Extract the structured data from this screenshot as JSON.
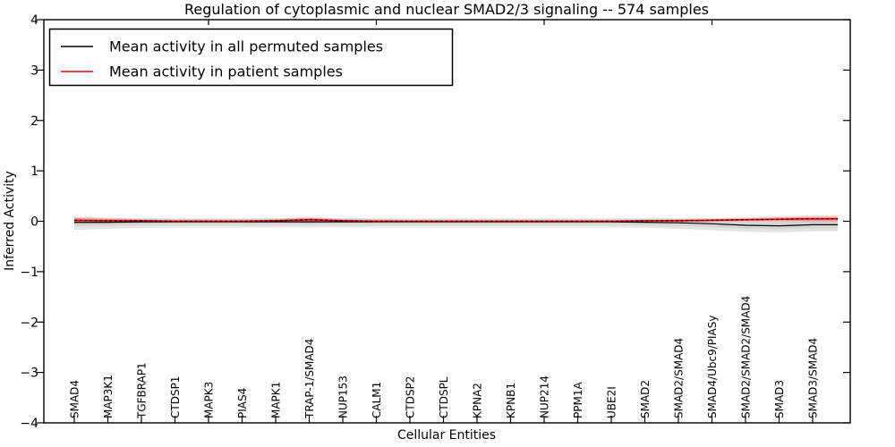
{
  "chart_data": {
    "type": "line",
    "title": "Regulation of cytoplasmic and nuclear SMAD2/3 signaling -- 574 samples",
    "xlabel": "Cellular Entities",
    "ylabel": "Inferred Activity",
    "ylim": [
      -4,
      4
    ],
    "grid": false,
    "legend_position": "upper left",
    "yticks": [
      4,
      3,
      2,
      1,
      0,
      -1,
      -2,
      -3,
      -4
    ],
    "ytick_labels": [
      "4",
      "3",
      "2",
      "1",
      "0",
      "−1",
      "−2",
      "−3",
      "−4"
    ],
    "top_tick_indices": [
      4,
      9,
      14,
      19
    ],
    "categories": [
      "SMAD4",
      "MAP3K1",
      "TGFBRAP1",
      "CTDSP1",
      "MAPK3",
      "PIAS4",
      "MAPK1",
      "TRAP-1/SMAD4",
      "NUP153",
      "CALM1",
      "CTDSP2",
      "CTDSPL",
      "KPNA2",
      "KPNB1",
      "NUP214",
      "PPM1A",
      "UBE2I",
      "SMAD2",
      "SMAD2/SMAD4",
      "SMAD4/Ubc9/PIASy",
      "SMAD2/SMAD2/SMAD4",
      "SMAD3",
      "SMAD3/SMAD4"
    ],
    "series": [
      {
        "name": "Mean activity in all permuted samples",
        "color": "#000000",
        "style": "solid",
        "band_color": "#e4e4e4",
        "band_color_inner": "#d6d6d6",
        "values": [
          -0.02,
          -0.02,
          -0.01,
          -0.01,
          -0.01,
          -0.01,
          -0.01,
          -0.01,
          -0.01,
          -0.01,
          -0.01,
          -0.01,
          -0.01,
          -0.01,
          -0.01,
          -0.01,
          -0.01,
          -0.02,
          -0.03,
          -0.05,
          -0.08,
          -0.09,
          -0.07
        ],
        "band_upper": [
          0.08,
          0.07,
          0.06,
          0.06,
          0.06,
          0.06,
          0.06,
          0.06,
          0.06,
          0.06,
          0.06,
          0.06,
          0.06,
          0.06,
          0.06,
          0.06,
          0.06,
          0.06,
          0.06,
          0.05,
          0.05,
          0.05,
          0.06
        ],
        "band_lower": [
          -0.17,
          -0.15,
          -0.13,
          -0.12,
          -0.12,
          -0.12,
          -0.12,
          -0.12,
          -0.12,
          -0.12,
          -0.12,
          -0.12,
          -0.12,
          -0.12,
          -0.12,
          -0.12,
          -0.12,
          -0.13,
          -0.15,
          -0.18,
          -0.21,
          -0.22,
          -0.2
        ]
      },
      {
        "name": "Mean activity in patient samples",
        "color": "#ff0000",
        "style": "solid",
        "band_color": "rgba(255,0,0,0.14)",
        "band_color_inner": "rgba(255,0,0,0.30)",
        "values": [
          0.02,
          0.01,
          0.01,
          0.0,
          0.0,
          0.0,
          0.01,
          0.03,
          0.01,
          0.0,
          0.0,
          0.0,
          0.0,
          0.0,
          0.0,
          0.0,
          0.0,
          0.01,
          0.01,
          0.02,
          0.03,
          0.04,
          0.05
        ],
        "band_upper": [
          0.09,
          0.07,
          0.05,
          0.04,
          0.04,
          0.04,
          0.05,
          0.09,
          0.05,
          0.04,
          0.03,
          0.03,
          0.03,
          0.03,
          0.03,
          0.03,
          0.03,
          0.04,
          0.05,
          0.06,
          0.08,
          0.1,
          0.12
        ],
        "band_lower": [
          -0.06,
          -0.05,
          -0.04,
          -0.03,
          -0.03,
          -0.03,
          -0.03,
          -0.04,
          -0.03,
          -0.03,
          -0.03,
          -0.03,
          -0.03,
          -0.03,
          -0.03,
          -0.03,
          -0.03,
          -0.02,
          -0.02,
          -0.02,
          -0.01,
          -0.01,
          -0.02
        ]
      }
    ]
  }
}
